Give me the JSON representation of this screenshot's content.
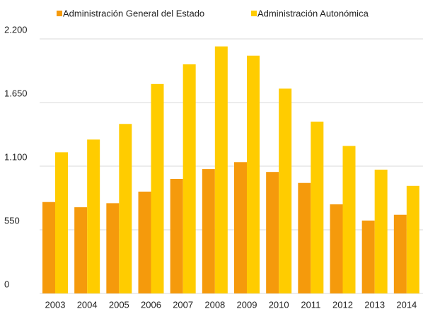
{
  "chart_data": {
    "type": "bar",
    "categories": [
      "2003",
      "2004",
      "2005",
      "2006",
      "2007",
      "2008",
      "2009",
      "2010",
      "2011",
      "2012",
      "2013",
      "2014"
    ],
    "series": [
      {
        "name": "Administración General del Estado",
        "color": "#f59a0c",
        "values": [
          790,
          745,
          780,
          880,
          990,
          1075,
          1135,
          1050,
          955,
          770,
          630,
          680
        ]
      },
      {
        "name": "Administración Autonómica",
        "color": "#ffcc00",
        "values": [
          1220,
          1330,
          1465,
          1810,
          1980,
          2135,
          2055,
          1770,
          1485,
          1275,
          1070,
          930
        ]
      }
    ],
    "ylim": [
      0,
      2200
    ],
    "yticks": [
      0,
      550,
      {
        "value": 1100,
        "label": "1.100"
      },
      {
        "value": 1650,
        "label": "1.650"
      },
      {
        "value": 2200,
        "label": "2.200"
      }
    ],
    "grid": true,
    "legend": "top"
  }
}
